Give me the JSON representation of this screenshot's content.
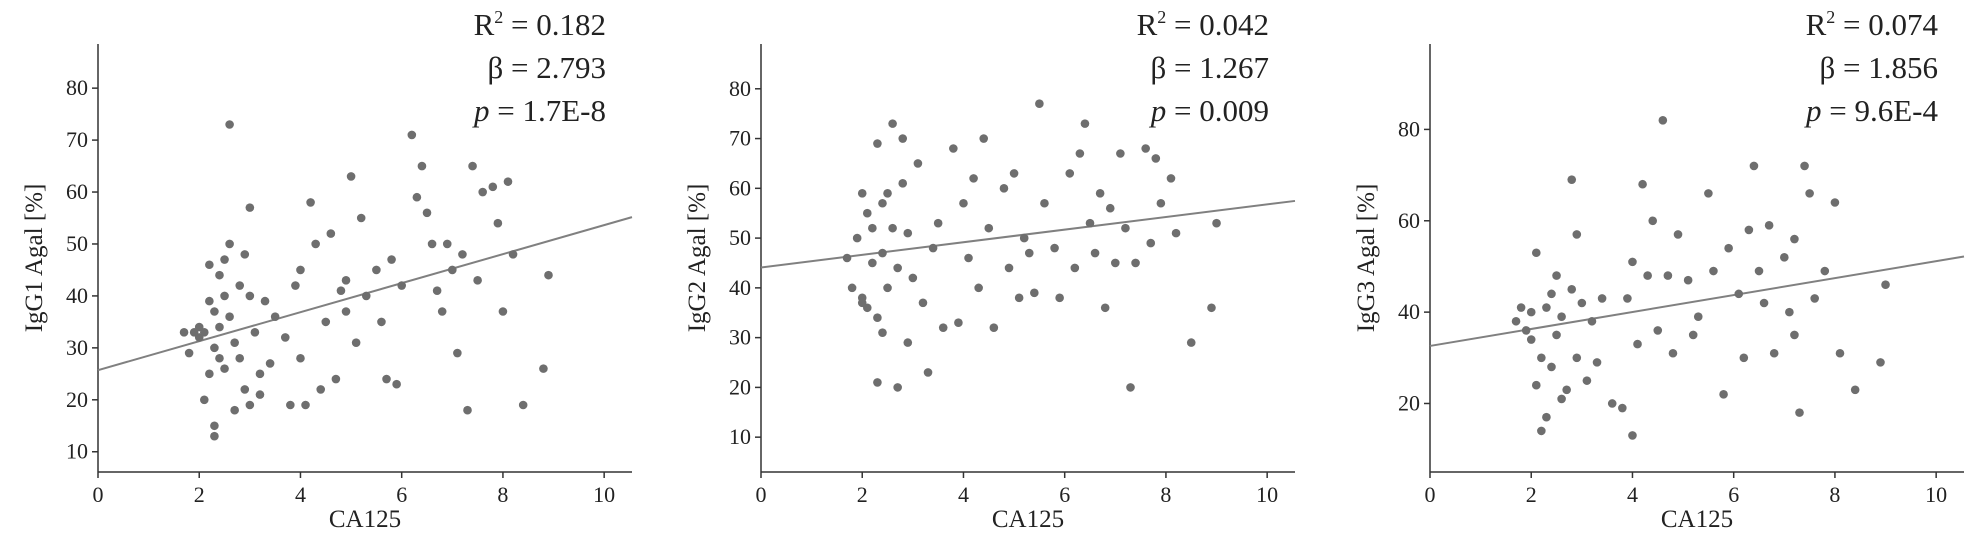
{
  "chart_data": [
    {
      "type": "scatter",
      "x_label": "CA125",
      "y_label": "IgG1 Agal [%]",
      "color": "#6e6e6e",
      "stats": [
        {
          "text": "R",
          "sup": "2",
          "value": " = 0.182"
        },
        {
          "text": "β",
          "value": " = 2.793"
        },
        {
          "text": "p",
          "value": " = 1.7E-8",
          "italic": true
        }
      ],
      "fit": {
        "intercept": 25.7,
        "slope": 2.793,
        "color": "#808080"
      },
      "xlim": [
        0,
        10.55
      ],
      "ylim": [
        6.1,
        88.5
      ],
      "xticks": [
        0,
        2,
        4,
        6,
        8,
        10
      ],
      "yticks": [
        10,
        20,
        30,
        40,
        50,
        60,
        70,
        80
      ],
      "x": [
        1.7,
        1.8,
        1.9,
        2.0,
        2.0,
        2.1,
        2.1,
        2.2,
        2.2,
        2.2,
        2.3,
        2.3,
        2.3,
        2.3,
        2.4,
        2.4,
        2.4,
        2.5,
        2.5,
        2.5,
        2.6,
        2.6,
        2.6,
        2.7,
        2.7,
        2.8,
        2.8,
        2.9,
        2.9,
        3.0,
        3.0,
        3.0,
        3.1,
        3.2,
        3.2,
        3.3,
        3.4,
        3.5,
        3.7,
        3.8,
        3.9,
        4.0,
        4.0,
        4.1,
        4.2,
        4.3,
        4.4,
        4.5,
        4.6,
        4.7,
        4.8,
        4.9,
        5.0,
        5.1,
        5.2,
        5.3,
        5.5,
        5.6,
        5.8,
        5.9,
        6.0,
        6.2,
        6.3,
        6.4,
        6.5,
        6.6,
        6.7,
        6.8,
        7.0,
        7.1,
        7.2,
        7.3,
        7.4,
        7.5,
        7.6,
        7.8,
        8.0,
        8.1,
        8.2,
        8.4,
        8.8,
        8.9,
        7.9,
        6.9,
        5.7,
        4.9
      ],
      "values": [
        33,
        29,
        33,
        32,
        34,
        20,
        33,
        46,
        39,
        25,
        13,
        15,
        37,
        30,
        44,
        34,
        28,
        47,
        40,
        26,
        73,
        50,
        36,
        18,
        31,
        42,
        28,
        48,
        22,
        57,
        40,
        19,
        33,
        25,
        21,
        39,
        27,
        36,
        32,
        19,
        42,
        45,
        28,
        19,
        58,
        50,
        22,
        35,
        52,
        24,
        41,
        37,
        63,
        31,
        55,
        40,
        45,
        35,
        47,
        23,
        42,
        71,
        59,
        65,
        56,
        50,
        41,
        37,
        45,
        29,
        48,
        18,
        65,
        43,
        60,
        61,
        37,
        62,
        48,
        19,
        26,
        44,
        54,
        50,
        24,
        43
      ]
    },
    {
      "type": "scatter",
      "x_label": "CA125",
      "y_label": "IgG2 Agal [%]",
      "color": "#6e6e6e",
      "stats": [
        {
          "text": "R",
          "sup": "2",
          "value": " = 0.042"
        },
        {
          "text": "β",
          "value": " = 1.267"
        },
        {
          "text": "p",
          "value": " = 0.009",
          "italic": true
        }
      ],
      "fit": {
        "intercept": 44.1,
        "slope": 1.267,
        "color": "#808080"
      },
      "xlim": [
        0,
        10.55
      ],
      "ylim": [
        3,
        89
      ],
      "xticks": [
        0,
        2,
        4,
        6,
        8,
        10
      ],
      "yticks": [
        10,
        20,
        30,
        40,
        50,
        60,
        70,
        80
      ],
      "x": [
        1.7,
        1.8,
        1.9,
        2.0,
        2.0,
        2.1,
        2.1,
        2.2,
        2.2,
        2.3,
        2.3,
        2.3,
        2.4,
        2.4,
        2.5,
        2.5,
        2.6,
        2.6,
        2.7,
        2.7,
        2.8,
        2.8,
        2.9,
        2.9,
        3.0,
        3.1,
        3.2,
        3.3,
        3.4,
        3.5,
        3.6,
        3.8,
        3.9,
        4.0,
        4.1,
        4.2,
        4.3,
        4.4,
        4.5,
        4.6,
        4.8,
        4.9,
        5.0,
        5.1,
        5.2,
        5.3,
        5.4,
        5.5,
        5.6,
        5.8,
        5.9,
        6.1,
        6.2,
        6.3,
        6.4,
        6.5,
        6.6,
        6.7,
        6.8,
        6.9,
        7.0,
        7.1,
        7.2,
        7.3,
        7.4,
        7.6,
        7.7,
        7.8,
        7.9,
        8.1,
        8.2,
        8.5,
        8.9,
        9.0,
        2.0,
        2.4
      ],
      "values": [
        46,
        40,
        50,
        59,
        37,
        55,
        36,
        52,
        45,
        69,
        21,
        34,
        57,
        47,
        59,
        40,
        73,
        52,
        44,
        20,
        70,
        61,
        51,
        29,
        42,
        65,
        37,
        23,
        48,
        53,
        32,
        68,
        33,
        57,
        46,
        62,
        40,
        70,
        52,
        32,
        60,
        44,
        63,
        38,
        50,
        47,
        39,
        77,
        57,
        48,
        38,
        63,
        44,
        67,
        73,
        53,
        47,
        59,
        36,
        56,
        45,
        67,
        52,
        20,
        45,
        68,
        49,
        66,
        57,
        62,
        51,
        29,
        36,
        53,
        38,
        31
      ]
    },
    {
      "type": "scatter",
      "x_label": "CA125",
      "y_label": "IgG3 Agal [%]",
      "color": "#6e6e6e",
      "stats": [
        {
          "text": "R",
          "sup": "2",
          "value": " = 0.074"
        },
        {
          "text": "β",
          "value": " = 1.856"
        },
        {
          "text": "p",
          "value": " = 9.6E-4",
          "italic": true
        }
      ],
      "fit": {
        "intercept": 32.6,
        "slope": 1.856,
        "color": "#808080"
      },
      "xlim": [
        0,
        10.55
      ],
      "ylim": [
        5,
        98.7
      ],
      "xticks": [
        0,
        2,
        4,
        6,
        8,
        10
      ],
      "yticks": [
        20,
        40,
        60,
        80
      ],
      "x": [
        1.7,
        1.8,
        1.9,
        2.0,
        2.0,
        2.1,
        2.1,
        2.2,
        2.2,
        2.3,
        2.3,
        2.4,
        2.4,
        2.5,
        2.5,
        2.6,
        2.6,
        2.7,
        2.8,
        2.8,
        2.9,
        2.9,
        3.0,
        3.1,
        3.2,
        3.3,
        3.4,
        3.6,
        3.8,
        3.9,
        4.0,
        4.0,
        4.1,
        4.2,
        4.3,
        4.4,
        4.5,
        4.6,
        4.7,
        4.8,
        4.9,
        5.1,
        5.2,
        5.3,
        5.5,
        5.6,
        5.8,
        5.9,
        6.1,
        6.3,
        6.4,
        6.5,
        6.6,
        6.7,
        6.8,
        7.0,
        7.1,
        7.2,
        7.3,
        7.4,
        7.5,
        7.6,
        7.8,
        8.0,
        8.1,
        8.4,
        8.9,
        9.0,
        7.2,
        6.2
      ],
      "values": [
        38,
        41,
        36,
        34,
        40,
        24,
        53,
        14,
        30,
        41,
        17,
        44,
        28,
        48,
        35,
        21,
        39,
        23,
        45,
        69,
        57,
        30,
        42,
        25,
        38,
        29,
        43,
        20,
        19,
        43,
        13,
        51,
        33,
        68,
        48,
        60,
        36,
        82,
        48,
        31,
        57,
        47,
        35,
        39,
        66,
        49,
        22,
        54,
        44,
        58,
        72,
        49,
        42,
        59,
        31,
        52,
        40,
        35,
        18,
        72,
        66,
        43,
        49,
        64,
        31,
        23,
        29,
        46,
        56,
        30
      ]
    }
  ]
}
